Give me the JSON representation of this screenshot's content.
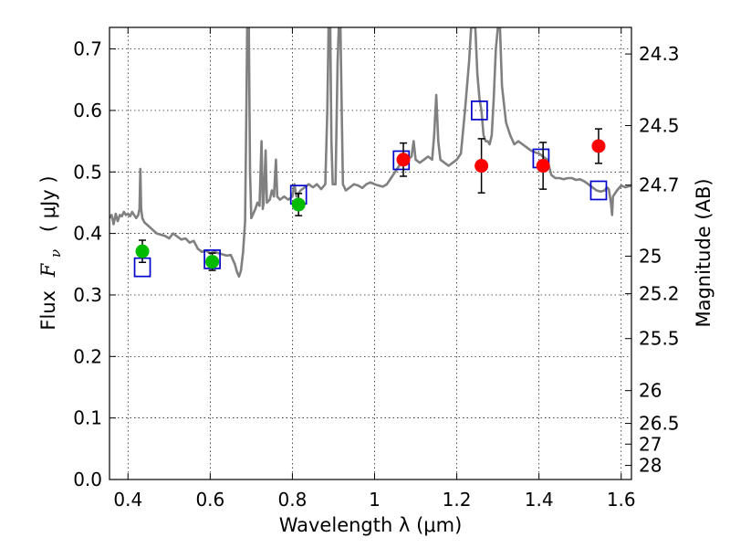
{
  "chart_data": {
    "type": "scatter",
    "xlabel": "Wavelength  λ (μm)",
    "ylabel_prefix": "Flux",
    "ylabel_symbol": "F",
    "ylabel_sub": "ν",
    "ylabel_unit": "( μJy )",
    "y2label": "Magnitude (AB)",
    "xlim": [
      0.355,
      1.625
    ],
    "ylim": [
      0.0,
      0.735
    ],
    "grid": true,
    "xticks": [
      0.4,
      0.6,
      0.8,
      1.0,
      1.2,
      1.4,
      1.6
    ],
    "xtick_labels": [
      "0.4",
      "0.6",
      "0.8",
      "1",
      "1.2",
      "1.4",
      "1.6"
    ],
    "yticks": [
      0.0,
      0.1,
      0.2,
      0.3,
      0.4,
      0.5,
      0.6,
      0.7
    ],
    "ytick_labels": [
      "0.0",
      "0.1",
      "0.2",
      "0.3",
      "0.4",
      "0.5",
      "0.6",
      "0.7"
    ],
    "y2ticks": [
      {
        "flux": 0.6918,
        "label": "24.3"
      },
      {
        "flux": 0.5754,
        "label": "24.5"
      },
      {
        "flux": 0.4786,
        "label": "24.7"
      },
      {
        "flux": 0.3631,
        "label": "25"
      },
      {
        "flux": 0.302,
        "label": "25.2"
      },
      {
        "flux": 0.2291,
        "label": "25.5"
      },
      {
        "flux": 0.1445,
        "label": "26"
      },
      {
        "flux": 0.0912,
        "label": "26.5"
      },
      {
        "flux": 0.0575,
        "label": "27"
      },
      {
        "flux": 0.0229,
        "label": "28"
      }
    ],
    "series": [
      {
        "kind": "model_spectrum",
        "color": "#808080",
        "points": [
          [
            0.355,
            0.425
          ],
          [
            0.36,
            0.43
          ],
          [
            0.365,
            0.415
          ],
          [
            0.37,
            0.432
          ],
          [
            0.375,
            0.42
          ],
          [
            0.38,
            0.43
          ],
          [
            0.385,
            0.428
          ],
          [
            0.39,
            0.435
          ],
          [
            0.395,
            0.43
          ],
          [
            0.4,
            0.432
          ],
          [
            0.405,
            0.428
          ],
          [
            0.41,
            0.435
          ],
          [
            0.415,
            0.43
          ],
          [
            0.42,
            0.425
          ],
          [
            0.425,
            0.43
          ],
          [
            0.428,
            0.44
          ],
          [
            0.43,
            0.505
          ],
          [
            0.432,
            0.44
          ],
          [
            0.435,
            0.425
          ],
          [
            0.44,
            0.418
          ],
          [
            0.45,
            0.412
          ],
          [
            0.46,
            0.406
          ],
          [
            0.47,
            0.4
          ],
          [
            0.48,
            0.398
          ],
          [
            0.49,
            0.396
          ],
          [
            0.5,
            0.392
          ],
          [
            0.51,
            0.4
          ],
          [
            0.52,
            0.395
          ],
          [
            0.53,
            0.39
          ],
          [
            0.54,
            0.392
          ],
          [
            0.55,
            0.385
          ],
          [
            0.56,
            0.388
          ],
          [
            0.57,
            0.375
          ],
          [
            0.58,
            0.37
          ],
          [
            0.59,
            0.372
          ],
          [
            0.6,
            0.368
          ],
          [
            0.61,
            0.37
          ],
          [
            0.62,
            0.368
          ],
          [
            0.63,
            0.366
          ],
          [
            0.64,
            0.364
          ],
          [
            0.65,
            0.365
          ],
          [
            0.66,
            0.35
          ],
          [
            0.665,
            0.338
          ],
          [
            0.67,
            0.33
          ],
          [
            0.675,
            0.34
          ],
          [
            0.68,
            0.37
          ],
          [
            0.685,
            0.42
          ],
          [
            0.688,
            0.6
          ],
          [
            0.69,
            0.735
          ],
          [
            0.694,
            0.735
          ],
          [
            0.697,
            0.5
          ],
          [
            0.7,
            0.425
          ],
          [
            0.71,
            0.44
          ],
          [
            0.715,
            0.45
          ],
          [
            0.72,
            0.445
          ],
          [
            0.725,
            0.55
          ],
          [
            0.728,
            0.44
          ],
          [
            0.73,
            0.45
          ],
          [
            0.735,
            0.535
          ],
          [
            0.738,
            0.45
          ],
          [
            0.745,
            0.455
          ],
          [
            0.75,
            0.47
          ],
          [
            0.755,
            0.46
          ],
          [
            0.76,
            0.52
          ],
          [
            0.763,
            0.46
          ],
          [
            0.77,
            0.455
          ],
          [
            0.78,
            0.46
          ],
          [
            0.79,
            0.455
          ],
          [
            0.8,
            0.46
          ],
          [
            0.805,
            0.48
          ],
          [
            0.81,
            0.46
          ],
          [
            0.815,
            0.465
          ],
          [
            0.82,
            0.47
          ],
          [
            0.83,
            0.475
          ],
          [
            0.84,
            0.48
          ],
          [
            0.85,
            0.475
          ],
          [
            0.86,
            0.48
          ],
          [
            0.87,
            0.472
          ],
          [
            0.88,
            0.48
          ],
          [
            0.885,
            0.6
          ],
          [
            0.888,
            0.735
          ],
          [
            0.892,
            0.735
          ],
          [
            0.895,
            0.55
          ],
          [
            0.898,
            0.48
          ],
          [
            0.905,
            0.48
          ],
          [
            0.91,
            0.68
          ],
          [
            0.913,
            0.735
          ],
          [
            0.917,
            0.735
          ],
          [
            0.92,
            0.6
          ],
          [
            0.923,
            0.48
          ],
          [
            0.93,
            0.47
          ],
          [
            0.94,
            0.475
          ],
          [
            0.95,
            0.48
          ],
          [
            0.96,
            0.478
          ],
          [
            0.97,
            0.474
          ],
          [
            0.98,
            0.48
          ],
          [
            0.99,
            0.483
          ],
          [
            1.0,
            0.48
          ],
          [
            1.01,
            0.478
          ],
          [
            1.02,
            0.476
          ],
          [
            1.03,
            0.48
          ],
          [
            1.04,
            0.49
          ],
          [
            1.05,
            0.5
          ],
          [
            1.06,
            0.51
          ],
          [
            1.065,
            0.52
          ],
          [
            1.07,
            0.515
          ],
          [
            1.08,
            0.52
          ],
          [
            1.09,
            0.525
          ],
          [
            1.095,
            0.55
          ],
          [
            1.1,
            0.52
          ],
          [
            1.11,
            0.515
          ],
          [
            1.12,
            0.52
          ],
          [
            1.13,
            0.525
          ],
          [
            1.14,
            0.52
          ],
          [
            1.145,
            0.56
          ],
          [
            1.15,
            0.625
          ],
          [
            1.155,
            0.55
          ],
          [
            1.16,
            0.52
          ],
          [
            1.17,
            0.515
          ],
          [
            1.18,
            0.51
          ],
          [
            1.19,
            0.515
          ],
          [
            1.2,
            0.52
          ],
          [
            1.21,
            0.53
          ],
          [
            1.22,
            0.6
          ],
          [
            1.23,
            0.68
          ],
          [
            1.235,
            0.735
          ],
          [
            1.245,
            0.735
          ],
          [
            1.25,
            0.66
          ],
          [
            1.255,
            0.62
          ],
          [
            1.26,
            0.6
          ],
          [
            1.265,
            0.56
          ],
          [
            1.27,
            0.55
          ],
          [
            1.275,
            0.55
          ],
          [
            1.28,
            0.545
          ],
          [
            1.285,
            0.56
          ],
          [
            1.29,
            0.62
          ],
          [
            1.295,
            0.7
          ],
          [
            1.3,
            0.735
          ],
          [
            1.305,
            0.735
          ],
          [
            1.31,
            0.64
          ],
          [
            1.32,
            0.58
          ],
          [
            1.33,
            0.56
          ],
          [
            1.34,
            0.545
          ],
          [
            1.35,
            0.55
          ],
          [
            1.36,
            0.545
          ],
          [
            1.37,
            0.54
          ],
          [
            1.38,
            0.535
          ],
          [
            1.39,
            0.532
          ],
          [
            1.4,
            0.53
          ],
          [
            1.41,
            0.525
          ],
          [
            1.42,
            0.52
          ],
          [
            1.43,
            0.495
          ],
          [
            1.44,
            0.49
          ],
          [
            1.45,
            0.49
          ],
          [
            1.46,
            0.488
          ],
          [
            1.47,
            0.49
          ],
          [
            1.48,
            0.49
          ],
          [
            1.49,
            0.487
          ],
          [
            1.5,
            0.488
          ],
          [
            1.51,
            0.485
          ],
          [
            1.52,
            0.48
          ],
          [
            1.53,
            0.475
          ],
          [
            1.54,
            0.47
          ],
          [
            1.55,
            0.468
          ],
          [
            1.56,
            0.47
          ],
          [
            1.565,
            0.475
          ],
          [
            1.57,
            0.472
          ],
          [
            1.575,
            0.45
          ],
          [
            1.578,
            0.43
          ],
          [
            1.58,
            0.46
          ],
          [
            1.59,
            0.47
          ],
          [
            1.6,
            0.478
          ],
          [
            1.61,
            0.475
          ],
          [
            1.625,
            0.478
          ]
        ]
      },
      {
        "kind": "model_photometry",
        "marker": "open_square",
        "color": "#0000cc",
        "points": [
          [
            0.435,
            0.345
          ],
          [
            0.605,
            0.358
          ],
          [
            0.815,
            0.463
          ],
          [
            1.065,
            0.519
          ],
          [
            1.255,
            0.6
          ],
          [
            1.405,
            0.522
          ],
          [
            1.545,
            0.47
          ]
        ]
      },
      {
        "kind": "observed_optical",
        "marker": "filled_circle",
        "color": "#00bb00",
        "points": [
          {
            "x": 0.435,
            "y": 0.371,
            "err": 0.018
          },
          {
            "x": 0.605,
            "y": 0.354,
            "err": 0.014
          },
          {
            "x": 0.815,
            "y": 0.447,
            "err": 0.018
          }
        ]
      },
      {
        "kind": "observed_nir",
        "marker": "filled_circle",
        "color": "#ff0000",
        "points": [
          {
            "x": 1.07,
            "y": 0.52,
            "err": 0.027
          },
          {
            "x": 1.26,
            "y": 0.51,
            "err": 0.044
          },
          {
            "x": 1.41,
            "y": 0.51,
            "err": 0.038
          },
          {
            "x": 1.545,
            "y": 0.542,
            "err": 0.028
          }
        ]
      }
    ]
  }
}
